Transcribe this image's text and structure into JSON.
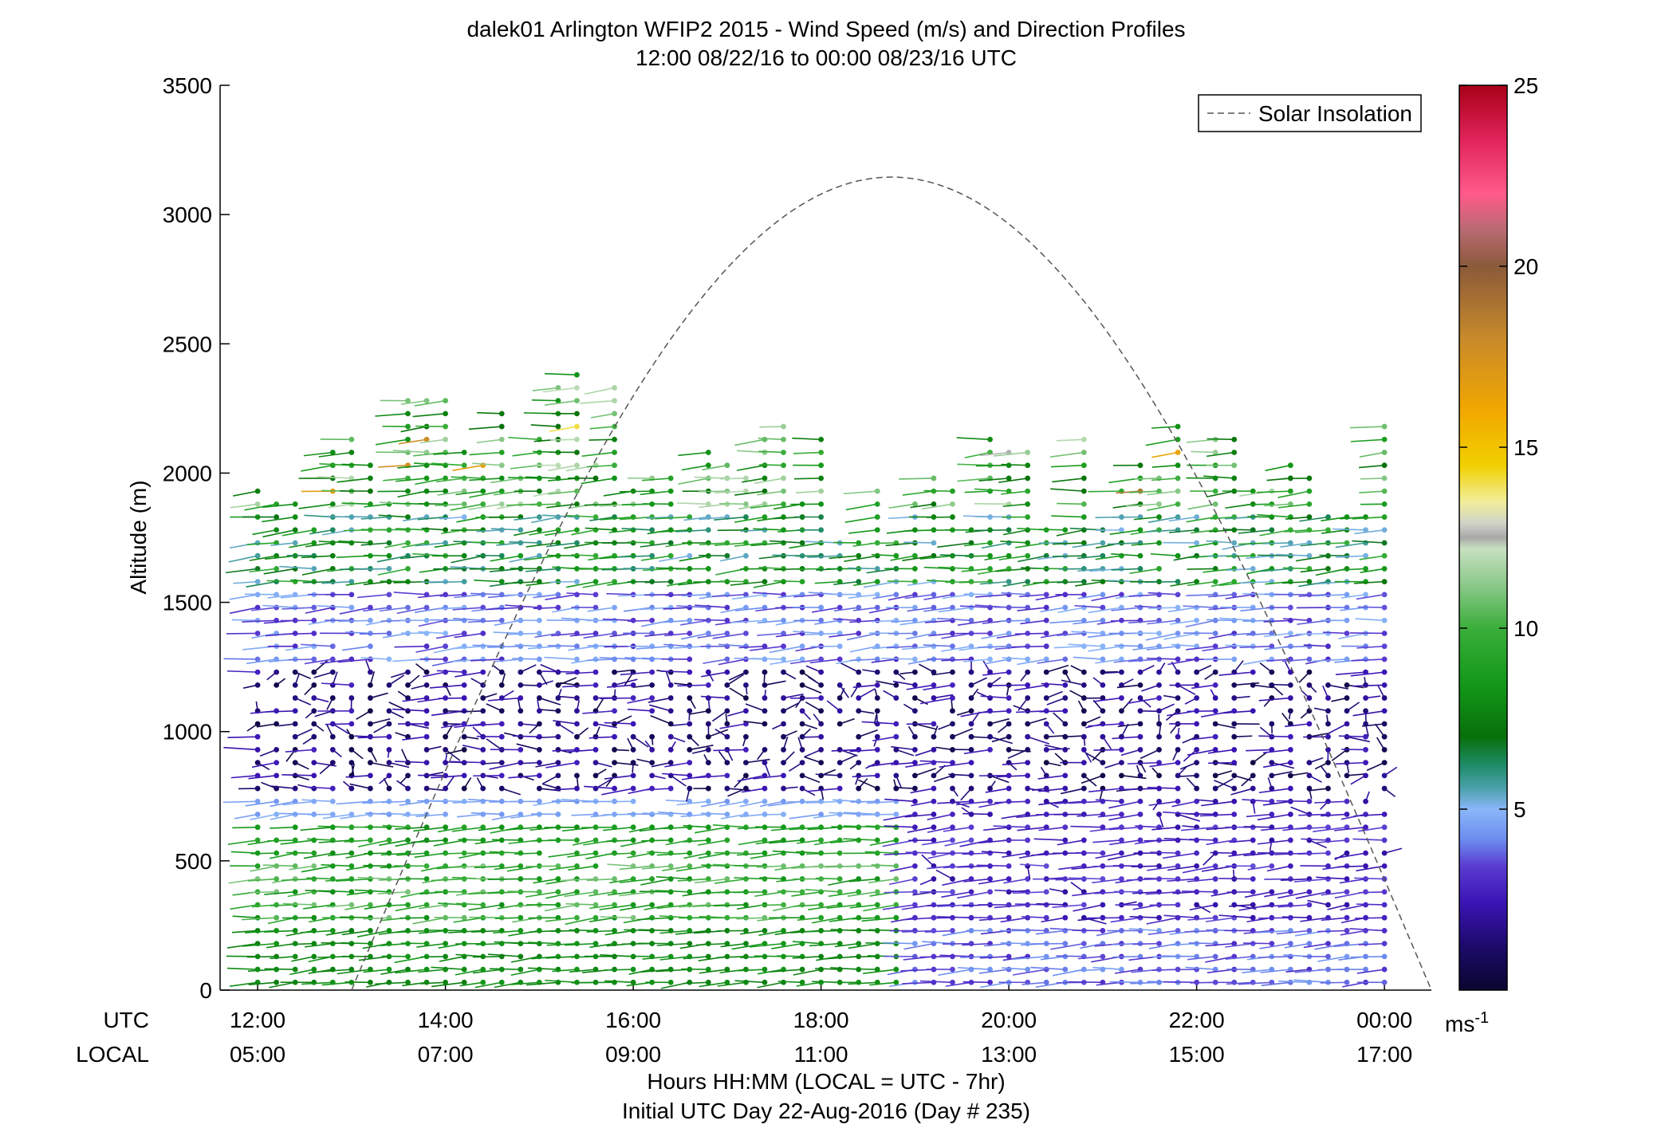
{
  "chart_data": {
    "type": "scatter",
    "title": "dalek01 Arlington WFIP2 2015 - Wind Speed (m/s) and Direction Profiles",
    "subtitle": "12:00 08/22/16 to 00:00 08/23/16  UTC",
    "ylabel": "Altitude (m)",
    "xlabel": "Hours HH:MM  (LOCAL = UTC - 7hr)",
    "footer": "Initial UTC Day 22-Aug-2016 (Day # 235)",
    "row_label_utc": "UTC",
    "row_label_local": "LOCAL",
    "x_unit": "hours since 12:00 UTC",
    "xlim": [
      -0.4,
      12.5
    ],
    "ylim": [
      0,
      3500
    ],
    "yticks": [
      0,
      500,
      1000,
      1500,
      2000,
      2500,
      3000,
      3500
    ],
    "ytick_labels": [
      "0",
      "500",
      "1000",
      "1500",
      "2000",
      "2500",
      "3000",
      "3500"
    ],
    "xticks": [
      0,
      2,
      4,
      6,
      8,
      10,
      12
    ],
    "xtick_labels_utc": [
      "12:00",
      "14:00",
      "16:00",
      "18:00",
      "20:00",
      "22:00",
      "00:00"
    ],
    "xtick_labels_local": [
      "05:00",
      "07:00",
      "09:00",
      "11:00",
      "13:00",
      "15:00",
      "17:00"
    ],
    "grid": false,
    "legend": {
      "label": "Solar Insolation",
      "placement": "top-right",
      "style": "dashed",
      "color": "#555555"
    },
    "solar_insolation": {
      "shape": "half-sine",
      "x_start": 1.0,
      "x_end": 12.5,
      "peak_altitude": 3145
    },
    "colorbar": {
      "range": [
        0,
        25
      ],
      "ticks": [
        5,
        10,
        15,
        20,
        25
      ],
      "tick_labels": [
        "5",
        "10",
        "15",
        "20",
        "25"
      ],
      "unit_label": "ms",
      "unit_superscript": "-1",
      "stops": [
        {
          "v": 0.0,
          "c": "#0a0630"
        },
        {
          "v": 1.2,
          "c": "#1c0a6a"
        },
        {
          "v": 2.4,
          "c": "#3a14b4"
        },
        {
          "v": 3.4,
          "c": "#5a3ad0"
        },
        {
          "v": 4.2,
          "c": "#6d8ff0"
        },
        {
          "v": 5.0,
          "c": "#8ab6f8"
        },
        {
          "v": 5.6,
          "c": "#4aa0a8"
        },
        {
          "v": 6.2,
          "c": "#1f8c6a"
        },
        {
          "v": 7.0,
          "c": "#08700a"
        },
        {
          "v": 8.5,
          "c": "#14991a"
        },
        {
          "v": 10.0,
          "c": "#3aae3a"
        },
        {
          "v": 11.0,
          "c": "#7fc47f"
        },
        {
          "v": 12.2,
          "c": "#c8e0c0"
        },
        {
          "v": 12.5,
          "c": "#a8a8a8"
        },
        {
          "v": 12.9,
          "c": "#cfd3c8"
        },
        {
          "v": 13.5,
          "c": "#f2ee9a"
        },
        {
          "v": 14.5,
          "c": "#f0d000"
        },
        {
          "v": 16.0,
          "c": "#f2a800"
        },
        {
          "v": 18.0,
          "c": "#c88a2a"
        },
        {
          "v": 20.0,
          "c": "#8a5a3a"
        },
        {
          "v": 21.0,
          "c": "#b86a72"
        },
        {
          "v": 22.0,
          "c": "#ff5a8a"
        },
        {
          "v": 23.5,
          "c": "#e0245a"
        },
        {
          "v": 25.0,
          "c": "#a80018"
        }
      ]
    }
  }
}
